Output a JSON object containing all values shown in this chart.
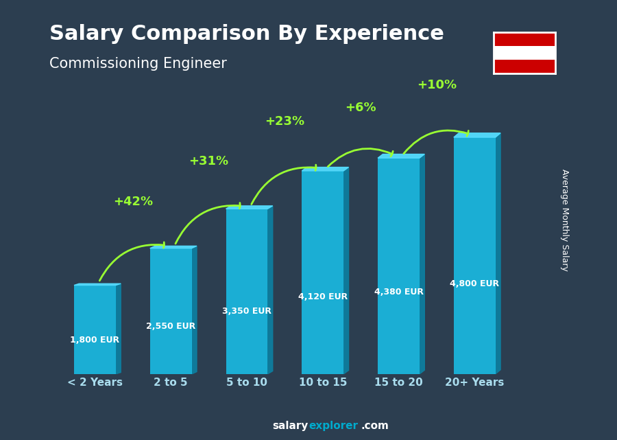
{
  "title": "Salary Comparison By Experience",
  "subtitle": "Commissioning Engineer",
  "categories": [
    "< 2 Years",
    "2 to 5",
    "5 to 10",
    "10 to 15",
    "15 to 20",
    "20+ Years"
  ],
  "values": [
    1800,
    2550,
    3350,
    4120,
    4380,
    4800
  ],
  "value_labels": [
    "1,800 EUR",
    "2,550 EUR",
    "3,350 EUR",
    "4,120 EUR",
    "4,380 EUR",
    "4,800 EUR"
  ],
  "pct_changes": [
    "+42%",
    "+31%",
    "+23%",
    "+6%",
    "+10%"
  ],
  "bar_color_top": "#00d4ff",
  "bar_color_mid": "#0099cc",
  "bar_color_side": "#006699",
  "bg_color": "#1a2a3a",
  "title_color": "#ffffff",
  "subtitle_color": "#ffffff",
  "label_color": "#ffffff",
  "pct_color": "#99ff33",
  "ylabel": "Average Monthly Salary",
  "footer": "salaryexplorer.com",
  "ymax": 5800
}
